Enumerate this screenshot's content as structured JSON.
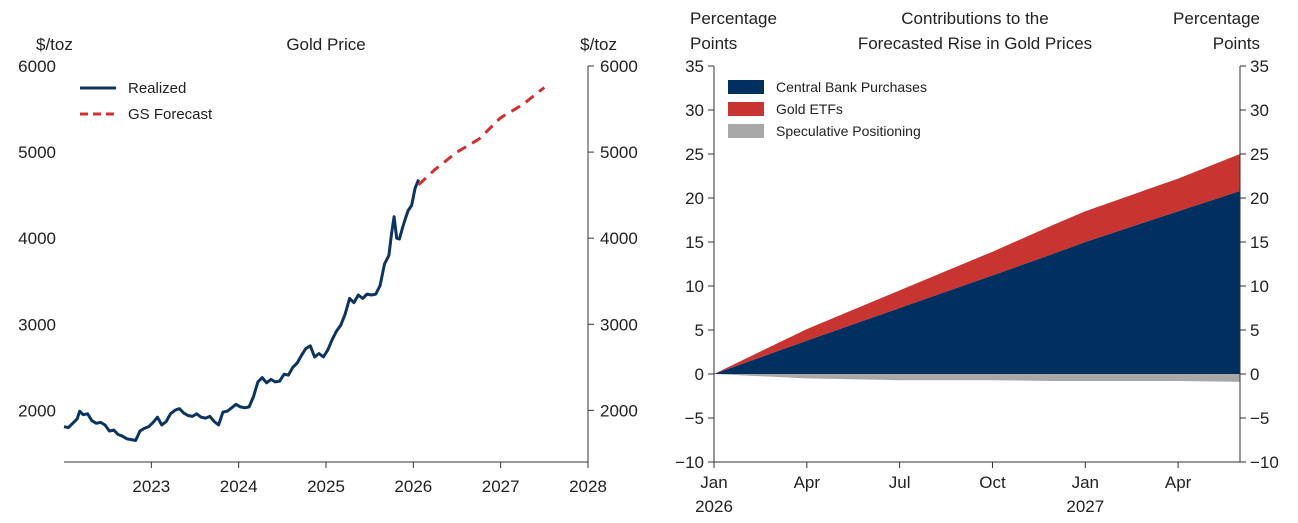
{
  "chart_data": [
    {
      "type": "line",
      "title": "Gold Price",
      "ylabel_left": "$/toz",
      "ylabel_right": "$/toz",
      "ylim": [
        1400,
        6000
      ],
      "yticks": [
        2000,
        3000,
        4000,
        5000,
        6000
      ],
      "xlim": [
        2022.0,
        2028.0
      ],
      "xticks": [
        2023,
        2024,
        2025,
        2026,
        2027,
        2028
      ],
      "xtick_labels": [
        "2023",
        "2024",
        "2025",
        "2026",
        "2027",
        "2028"
      ],
      "legend_position": "top-left",
      "series": [
        {
          "name": "Realized",
          "color": "#0b3560",
          "style": "solid",
          "points": [
            [
              2022.0,
              1810
            ],
            [
              2022.05,
              1800
            ],
            [
              2022.1,
              1850
            ],
            [
              2022.15,
              1900
            ],
            [
              2022.18,
              1990
            ],
            [
              2022.22,
              1950
            ],
            [
              2022.27,
              1960
            ],
            [
              2022.32,
              1880
            ],
            [
              2022.37,
              1850
            ],
            [
              2022.42,
              1860
            ],
            [
              2022.47,
              1830
            ],
            [
              2022.52,
              1760
            ],
            [
              2022.57,
              1770
            ],
            [
              2022.62,
              1720
            ],
            [
              2022.67,
              1700
            ],
            [
              2022.72,
              1670
            ],
            [
              2022.77,
              1660
            ],
            [
              2022.82,
              1650
            ],
            [
              2022.87,
              1760
            ],
            [
              2022.92,
              1790
            ],
            [
              2022.97,
              1810
            ],
            [
              2023.02,
              1860
            ],
            [
              2023.07,
              1920
            ],
            [
              2023.12,
              1830
            ],
            [
              2023.17,
              1870
            ],
            [
              2023.22,
              1960
            ],
            [
              2023.27,
              2000
            ],
            [
              2023.32,
              2020
            ],
            [
              2023.37,
              1970
            ],
            [
              2023.42,
              1940
            ],
            [
              2023.47,
              1930
            ],
            [
              2023.52,
              1960
            ],
            [
              2023.57,
              1920
            ],
            [
              2023.62,
              1910
            ],
            [
              2023.67,
              1930
            ],
            [
              2023.72,
              1870
            ],
            [
              2023.77,
              1830
            ],
            [
              2023.82,
              1980
            ],
            [
              2023.87,
              1990
            ],
            [
              2023.92,
              2030
            ],
            [
              2023.97,
              2070
            ],
            [
              2024.02,
              2040
            ],
            [
              2024.07,
              2030
            ],
            [
              2024.12,
              2040
            ],
            [
              2024.17,
              2160
            ],
            [
              2024.22,
              2330
            ],
            [
              2024.27,
              2380
            ],
            [
              2024.32,
              2320
            ],
            [
              2024.37,
              2360
            ],
            [
              2024.42,
              2330
            ],
            [
              2024.47,
              2340
            ],
            [
              2024.52,
              2420
            ],
            [
              2024.57,
              2410
            ],
            [
              2024.62,
              2500
            ],
            [
              2024.67,
              2550
            ],
            [
              2024.72,
              2640
            ],
            [
              2024.77,
              2720
            ],
            [
              2024.82,
              2750
            ],
            [
              2024.87,
              2620
            ],
            [
              2024.92,
              2660
            ],
            [
              2024.97,
              2620
            ],
            [
              2025.02,
              2700
            ],
            [
              2025.07,
              2820
            ],
            [
              2025.12,
              2920
            ],
            [
              2025.17,
              2990
            ],
            [
              2025.22,
              3120
            ],
            [
              2025.27,
              3300
            ],
            [
              2025.32,
              3250
            ],
            [
              2025.37,
              3340
            ],
            [
              2025.42,
              3300
            ],
            [
              2025.47,
              3350
            ],
            [
              2025.52,
              3340
            ],
            [
              2025.57,
              3350
            ],
            [
              2025.62,
              3450
            ],
            [
              2025.67,
              3700
            ],
            [
              2025.72,
              3800
            ],
            [
              2025.75,
              4050
            ],
            [
              2025.78,
              4250
            ],
            [
              2025.81,
              4000
            ],
            [
              2025.84,
              3990
            ],
            [
              2025.87,
              4100
            ],
            [
              2025.9,
              4200
            ],
            [
              2025.94,
              4320
            ],
            [
              2025.98,
              4380
            ],
            [
              2026.02,
              4580
            ],
            [
              2026.06,
              4680
            ]
          ]
        },
        {
          "name": "GS Forecast",
          "color": "#d32f2f",
          "style": "dashed",
          "points": [
            [
              2026.06,
              4620
            ],
            [
              2026.25,
              4800
            ],
            [
              2026.5,
              5000
            ],
            [
              2026.75,
              5150
            ],
            [
              2027.0,
              5400
            ],
            [
              2027.25,
              5550
            ],
            [
              2027.5,
              5750
            ]
          ]
        }
      ]
    },
    {
      "type": "area",
      "title": "Contributions to the Forecasted Rise in Gold Prices",
      "title_lines": [
        "Contributions to the",
        "Forecasted Rise in Gold Prices"
      ],
      "ylabel_left_lines": [
        "Percentage",
        "Points"
      ],
      "ylabel_right_lines": [
        "Percentage",
        "Points"
      ],
      "ylim": [
        -10,
        35
      ],
      "yticks": [
        -10,
        -5,
        0,
        5,
        10,
        15,
        20,
        25,
        30,
        35
      ],
      "ytick_labels": [
        "−10",
        "−5",
        "0",
        "5",
        "10",
        "15",
        "20",
        "25",
        "30",
        "35"
      ],
      "xlim": [
        "2026-01",
        "2027-06"
      ],
      "x": [
        "2026-01",
        "2026-04",
        "2026-07",
        "2026-10",
        "2026-12",
        "2027-01",
        "2027-04",
        "2027-06"
      ],
      "xticks": [
        {
          "at": "2026-01",
          "line1": "Jan",
          "line2": "2026"
        },
        {
          "at": "2026-04",
          "line1": "Apr",
          "line2": ""
        },
        {
          "at": "2026-07",
          "line1": "Jul",
          "line2": ""
        },
        {
          "at": "2026-10",
          "line1": "Oct",
          "line2": ""
        },
        {
          "at": "2027-01",
          "line1": "Jan",
          "line2": "2027"
        },
        {
          "at": "2027-04",
          "line1": "Apr",
          "line2": ""
        }
      ],
      "legend_position": "top-left",
      "series": [
        {
          "name": "Central Bank Purchases",
          "color": "#00305f",
          "values": [
            0,
            3.8,
            7.5,
            11.2,
            13.7,
            15.0,
            18.5,
            20.8
          ]
        },
        {
          "name": "Gold ETFs",
          "color": "#c8342f",
          "values": [
            0,
            1.3,
            2.0,
            2.7,
            3.3,
            3.5,
            3.7,
            4.2
          ]
        },
        {
          "name": "Speculative Positioning",
          "color": "#a8a8a8",
          "values": [
            0,
            -0.5,
            -0.7,
            -0.7,
            -0.8,
            -0.8,
            -0.8,
            -0.9
          ]
        }
      ]
    }
  ]
}
